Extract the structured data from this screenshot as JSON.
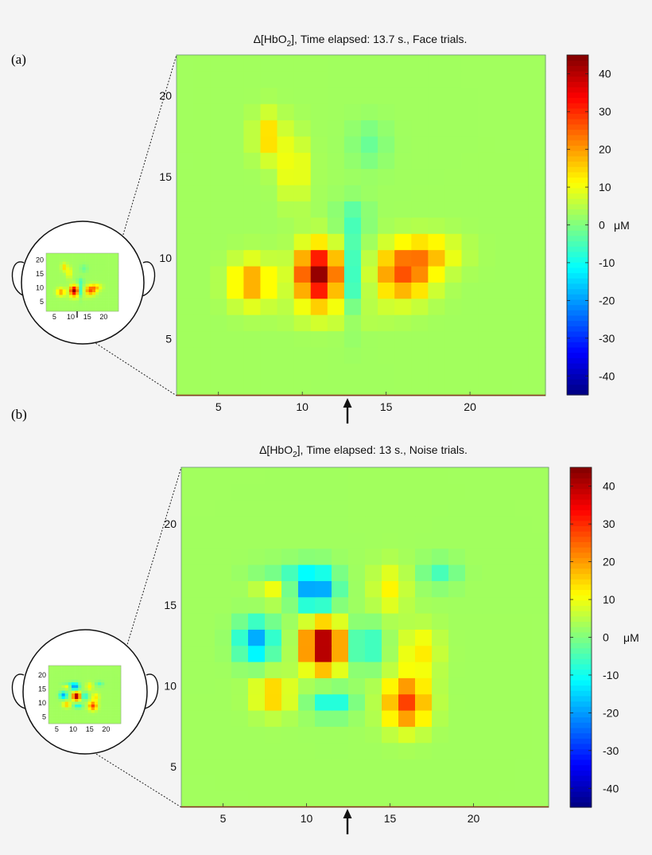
{
  "chart_data": [
    {
      "id": "a",
      "type": "heatmap",
      "panel_label": "(a)",
      "title_prefix": "Δ[HbO",
      "title_sub": "2",
      "title_suffix": "], Time elapsed: 13.7 s., Face trials.",
      "xlabel": "",
      "ylabel": "",
      "unit": "μM",
      "x_ticks": [
        "5",
        "10",
        "15",
        "20"
      ],
      "y_ticks": [
        "5",
        "10",
        "15",
        "20"
      ],
      "xlim": [
        2.5,
        24.5
      ],
      "ylim": [
        1.5,
        22.5
      ],
      "grid": false,
      "colorbar": {
        "vmin": -45,
        "vmax": 45,
        "ticks": [
          "40",
          "30",
          "20",
          "10",
          "0",
          "-10",
          "-20",
          "-30",
          "-40"
        ]
      },
      "arrow_at_x": 11,
      "inset_x_ticks": [
        "5",
        "10",
        "15",
        "20"
      ],
      "inset_y_ticks": [
        "20",
        "15",
        "10",
        "5"
      ],
      "baseline": 3,
      "blobs": [
        {
          "x": 11,
          "y": 9,
          "sx": 0.9,
          "sy": 1.2,
          "amp": 40
        },
        {
          "x": 16,
          "y": 9,
          "sx": 1.2,
          "sy": 1.1,
          "amp": 22
        },
        {
          "x": 7,
          "y": 8.5,
          "sx": 0.9,
          "sy": 1.0,
          "amp": 17
        },
        {
          "x": 17.5,
          "y": 10.3,
          "sx": 1.3,
          "sy": 0.8,
          "amp": 12
        },
        {
          "x": 13,
          "y": 9,
          "sx": 0.5,
          "sy": 1.8,
          "amp": -13
        },
        {
          "x": 8,
          "y": 17.5,
          "sx": 0.6,
          "sy": 1.0,
          "amp": 12
        },
        {
          "x": 9.5,
          "y": 15.5,
          "sx": 0.6,
          "sy": 1.4,
          "amp": 9
        },
        {
          "x": 14,
          "y": 17,
          "sx": 0.8,
          "sy": 1.0,
          "amp": -5
        },
        {
          "x": 13,
          "y": 12.5,
          "sx": 0.7,
          "sy": 0.8,
          "amp": -6
        },
        {
          "x": 12,
          "y": 6.5,
          "sx": 2.0,
          "sy": 0.6,
          "amp": 4
        }
      ]
    },
    {
      "id": "b",
      "type": "heatmap",
      "panel_label": "(b)",
      "title_prefix": "Δ[HbO",
      "title_sub": "2",
      "title_suffix": "], Time elapsed: 13 s., Noise trials.",
      "xlabel": "",
      "ylabel": "",
      "unit": "μM",
      "x_ticks": [
        "5",
        "10",
        "15",
        "20"
      ],
      "y_ticks": [
        "5",
        "10",
        "15",
        "20"
      ],
      "xlim": [
        2.5,
        24.5
      ],
      "ylim": [
        2.5,
        23.5
      ],
      "grid": false,
      "colorbar": {
        "vmin": -45,
        "vmax": 45,
        "ticks": [
          "40",
          "30",
          "20",
          "10",
          "0",
          "-10",
          "-20",
          "-30",
          "-40"
        ]
      },
      "arrow_at_x": 11,
      "inset_x_ticks": [
        "5",
        "10",
        "15",
        "20"
      ],
      "inset_y_ticks": [
        "20",
        "15",
        "10",
        "5"
      ],
      "baseline": 3,
      "blobs": [
        {
          "x": 11,
          "y": 12.5,
          "sx": 0.8,
          "sy": 1.0,
          "amp": 42
        },
        {
          "x": 16,
          "y": 9,
          "sx": 0.9,
          "sy": 1.1,
          "amp": 25
        },
        {
          "x": 7,
          "y": 12.8,
          "sx": 0.8,
          "sy": 0.9,
          "amp": -22
        },
        {
          "x": 10.5,
          "y": 16,
          "sx": 0.9,
          "sy": 0.9,
          "amp": -25
        },
        {
          "x": 13.5,
          "y": 12.5,
          "sx": 0.7,
          "sy": 0.9,
          "amp": -13
        },
        {
          "x": 11.5,
          "y": 9,
          "sx": 0.9,
          "sy": 0.6,
          "amp": -13
        },
        {
          "x": 8,
          "y": 9.5,
          "sx": 0.8,
          "sy": 0.8,
          "amp": 14
        },
        {
          "x": 16.8,
          "y": 12.2,
          "sx": 0.8,
          "sy": 1.0,
          "amp": 10
        },
        {
          "x": 18,
          "y": 17,
          "sx": 0.8,
          "sy": 0.6,
          "amp": -8
        },
        {
          "x": 8,
          "y": 16,
          "sx": 0.7,
          "sy": 0.6,
          "amp": 8
        },
        {
          "x": 15,
          "y": 16,
          "sx": 0.7,
          "sy": 1.0,
          "amp": 9
        },
        {
          "x": 8.5,
          "y": 17,
          "sx": 1.2,
          "sy": 0.5,
          "amp": -6
        }
      ]
    }
  ]
}
